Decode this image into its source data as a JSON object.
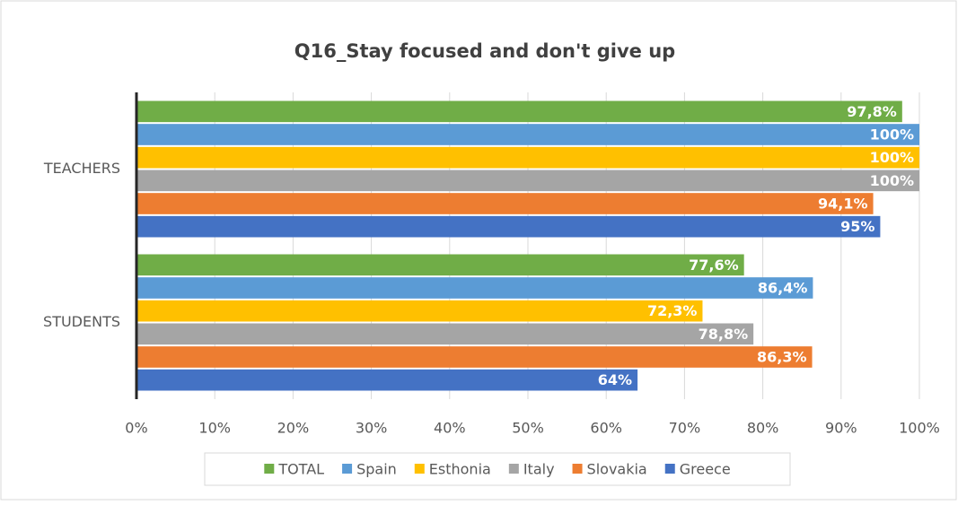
{
  "chart_data": {
    "type": "hbar",
    "title": "Q16_Stay focused and don't give up",
    "categories": [
      "TEACHERS",
      "STUDENTS"
    ],
    "series": [
      {
        "name": "TOTAL",
        "color": "#70ad47",
        "values": [
          97.8,
          77.6
        ],
        "value_labels": [
          "97,8%",
          "77,6%"
        ]
      },
      {
        "name": "Spain",
        "color": "#5b9bd5",
        "values": [
          100,
          86.4
        ],
        "value_labels": [
          "100%",
          "86,4%"
        ]
      },
      {
        "name": "Esthonia",
        "color": "#ffc000",
        "values": [
          100,
          72.3
        ],
        "value_labels": [
          "100%",
          "72,3%"
        ]
      },
      {
        "name": "Italy",
        "color": "#a5a5a5",
        "values": [
          100,
          78.8
        ],
        "value_labels": [
          "100%",
          "78,8%"
        ]
      },
      {
        "name": "Slovakia",
        "color": "#ed7d31",
        "values": [
          94.1,
          86.3
        ],
        "value_labels": [
          "94,1%",
          "86,3%"
        ]
      },
      {
        "name": "Greece",
        "color": "#4472c4",
        "values": [
          95,
          64
        ],
        "value_labels": [
          "95%",
          "64%"
        ]
      }
    ],
    "xlim": [
      0,
      100
    ],
    "xticks": [
      {
        "value": 0,
        "label": "0%"
      },
      {
        "value": 10,
        "label": "10%"
      },
      {
        "value": 20,
        "label": "20%"
      },
      {
        "value": 30,
        "label": "30%"
      },
      {
        "value": 40,
        "label": "40%"
      },
      {
        "value": 50,
        "label": "50%"
      },
      {
        "value": 60,
        "label": "60%"
      },
      {
        "value": 70,
        "label": "70%"
      },
      {
        "value": 80,
        "label": "80%"
      },
      {
        "value": 90,
        "label": "90%"
      },
      {
        "value": 100,
        "label": "100%"
      }
    ],
    "grid": true,
    "legend": "bottom"
  }
}
